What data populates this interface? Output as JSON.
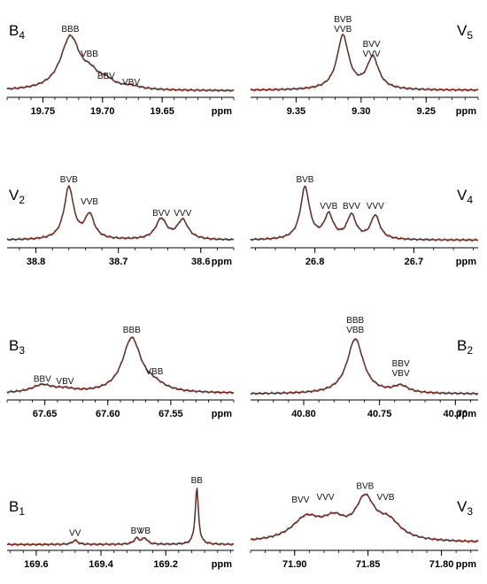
{
  "chart_data": [
    {
      "type": "line",
      "panel_label": {
        "main": "B",
        "sub": "4"
      },
      "xlabel": "ppm",
      "xlim": [
        19.78,
        19.59
      ],
      "ticks": [
        19.75,
        19.7,
        19.65
      ],
      "tick_labels": [
        "19.75",
        "19.70",
        "19.65"
      ],
      "peak_labels": [
        {
          "lines": [
            "BBB"
          ],
          "x": 19.727,
          "y": 1.0
        },
        {
          "lines": [
            "VBB"
          ],
          "x": 19.711,
          "y": 0.56
        },
        {
          "lines": [
            "BBV"
          ],
          "x": 19.697,
          "y": 0.17
        },
        {
          "lines": [
            "VBV"
          ],
          "x": 19.676,
          "y": 0.06
        }
      ],
      "series": [
        {
          "color": "#c0392b",
          "baseline": 0.02,
          "peaks": [
            {
              "center": 19.727,
              "height": 0.93,
              "width": 0.01
            },
            {
              "center": 19.71,
              "height": 0.2,
              "width": 0.008
            },
            {
              "center": 19.697,
              "height": 0.12,
              "width": 0.008
            },
            {
              "center": 19.676,
              "height": 0.05,
              "width": 0.01
            }
          ]
        },
        {
          "color": "#3c3c3c",
          "baseline": 0.02,
          "peaks": [
            {
              "center": 19.727,
              "height": 0.93,
              "width": 0.01
            },
            {
              "center": 19.71,
              "height": 0.2,
              "width": 0.008
            },
            {
              "center": 19.697,
              "height": 0.12,
              "width": 0.008
            },
            {
              "center": 19.676,
              "height": 0.05,
              "width": 0.01
            }
          ]
        }
      ]
    },
    {
      "type": "line",
      "panel_label": {
        "main": "V",
        "sub": "5"
      },
      "xlabel": "ppm",
      "xlim": [
        9.385,
        9.21
      ],
      "ticks": [
        9.35,
        9.3,
        9.25
      ],
      "tick_labels": [
        "9.35",
        "9.30",
        "9.25"
      ],
      "peak_labels": [
        {
          "lines": [
            "BVB",
            "VVB"
          ],
          "x": 9.314,
          "y": 1.0
        },
        {
          "lines": [
            "BVV",
            "VVV"
          ],
          "x": 9.292,
          "y": 0.56
        }
      ],
      "series": [
        {
          "color": "#c0392b",
          "baseline": 0.03,
          "peaks": [
            {
              "center": 9.314,
              "height": 0.95,
              "width": 0.0055
            },
            {
              "center": 9.291,
              "height": 0.56,
              "width": 0.0055
            }
          ]
        },
        {
          "color": "#3c3c3c",
          "baseline": 0.03,
          "peaks": [
            {
              "center": 9.314,
              "height": 0.95,
              "width": 0.0055
            },
            {
              "center": 9.291,
              "height": 0.56,
              "width": 0.0055
            }
          ]
        }
      ]
    },
    {
      "type": "line",
      "panel_label": {
        "main": "V",
        "sub": "2"
      },
      "xlabel": "ppm",
      "xlim": [
        38.835,
        38.56
      ],
      "ticks": [
        38.8,
        38.7,
        38.6
      ],
      "tick_labels": [
        "38.8",
        "38.7",
        "38.6"
      ],
      "peak_labels": [
        {
          "lines": [
            "BVB"
          ],
          "x": 38.76,
          "y": 1.0
        },
        {
          "lines": [
            "VVB"
          ],
          "x": 38.735,
          "y": 0.61
        },
        {
          "lines": [
            "BVV"
          ],
          "x": 38.648,
          "y": 0.41
        },
        {
          "lines": [
            "VVV"
          ],
          "x": 38.622,
          "y": 0.41
        }
      ],
      "series": [
        {
          "color": "#c0392b",
          "baseline": 0.04,
          "peaks": [
            {
              "center": 38.76,
              "height": 0.92,
              "width": 0.007
            },
            {
              "center": 38.735,
              "height": 0.42,
              "width": 0.007
            },
            {
              "center": 38.648,
              "height": 0.36,
              "width": 0.008
            },
            {
              "center": 38.622,
              "height": 0.34,
              "width": 0.008
            }
          ]
        },
        {
          "color": "#3c3c3c",
          "baseline": 0.04,
          "peaks": [
            {
              "center": 38.76,
              "height": 0.92,
              "width": 0.007
            },
            {
              "center": 38.735,
              "height": 0.42,
              "width": 0.007
            },
            {
              "center": 38.648,
              "height": 0.36,
              "width": 0.008
            },
            {
              "center": 38.622,
              "height": 0.34,
              "width": 0.008
            }
          ]
        }
      ]
    },
    {
      "type": "line",
      "panel_label": {
        "main": "V",
        "sub": "4"
      },
      "xlabel": "ppm",
      "xlim": [
        26.865,
        26.635
      ],
      "ticks": [
        26.8,
        26.7
      ],
      "tick_labels": [
        "26.8",
        "26.7"
      ],
      "peak_labels": [
        {
          "lines": [
            "BVB"
          ],
          "x": 26.81,
          "y": 1.0
        },
        {
          "lines": [
            "VVB"
          ],
          "x": 26.786,
          "y": 0.53
        },
        {
          "lines": [
            "BVV"
          ],
          "x": 26.763,
          "y": 0.53
        },
        {
          "lines": [
            "VVV"
          ],
          "x": 26.739,
          "y": 0.53
        }
      ],
      "series": [
        {
          "color": "#c0392b",
          "baseline": 0.04,
          "peaks": [
            {
              "center": 26.81,
              "height": 0.92,
              "width": 0.0055
            },
            {
              "center": 26.786,
              "height": 0.42,
              "width": 0.0055
            },
            {
              "center": 26.763,
              "height": 0.42,
              "width": 0.0055
            },
            {
              "center": 26.739,
              "height": 0.42,
              "width": 0.0055
            }
          ]
        },
        {
          "color": "#3c3c3c",
          "baseline": 0.04,
          "peaks": [
            {
              "center": 26.81,
              "height": 0.92,
              "width": 0.0055
            },
            {
              "center": 26.786,
              "height": 0.42,
              "width": 0.0055
            },
            {
              "center": 26.763,
              "height": 0.42,
              "width": 0.0055
            },
            {
              "center": 26.739,
              "height": 0.42,
              "width": 0.0055
            }
          ]
        }
      ]
    },
    {
      "type": "line",
      "panel_label": {
        "main": "B",
        "sub": "3"
      },
      "xlabel": "ppm",
      "xlim": [
        67.68,
        67.5
      ],
      "ticks": [
        67.65,
        67.6,
        67.55
      ],
      "tick_labels": [
        "67.65",
        "67.60",
        "67.55"
      ],
      "peak_labels": [
        {
          "lines": [
            "BBB"
          ],
          "x": 67.581,
          "y": 1.0
        },
        {
          "lines": [
            "VBB"
          ],
          "x": 67.563,
          "y": 0.29
        },
        {
          "lines": [
            "BBV"
          ],
          "x": 67.652,
          "y": 0.16
        },
        {
          "lines": [
            "VBV"
          ],
          "x": 67.634,
          "y": 0.12
        }
      ],
      "series": [
        {
          "color": "#c0392b",
          "baseline": 0.02,
          "peaks": [
            {
              "center": 67.581,
              "height": 0.93,
              "width": 0.009
            },
            {
              "center": 67.563,
              "height": 0.1,
              "width": 0.01
            },
            {
              "center": 67.652,
              "height": 0.13,
              "width": 0.01
            },
            {
              "center": 67.634,
              "height": 0.05,
              "width": 0.01
            }
          ]
        },
        {
          "color": "#3c3c3c",
          "baseline": 0.02,
          "peaks": [
            {
              "center": 67.581,
              "height": 0.93,
              "width": 0.009
            },
            {
              "center": 67.563,
              "height": 0.1,
              "width": 0.01
            },
            {
              "center": 67.652,
              "height": 0.13,
              "width": 0.01
            },
            {
              "center": 67.634,
              "height": 0.05,
              "width": 0.01
            }
          ]
        }
      ]
    },
    {
      "type": "line",
      "panel_label": {
        "main": "B",
        "sub": "2"
      },
      "xlabel": "ppm",
      "xlim": [
        40.835,
        40.685
      ],
      "ticks": [
        40.8,
        40.75,
        40.7
      ],
      "tick_labels": [
        "40.80",
        "40.75",
        "40.70"
      ],
      "peak_labels": [
        {
          "lines": [
            "BBB",
            "VBB"
          ],
          "x": 40.766,
          "y": 1.0
        },
        {
          "lines": [
            "BBV",
            "VBV"
          ],
          "x": 40.736,
          "y": 0.26
        }
      ],
      "series": [
        {
          "color": "#c0392b",
          "baseline": 0.01,
          "peaks": [
            {
              "center": 40.766,
              "height": 0.94,
              "width": 0.0065
            },
            {
              "center": 40.736,
              "height": 0.12,
              "width": 0.006
            }
          ]
        },
        {
          "color": "#3c3c3c",
          "baseline": 0.01,
          "peaks": [
            {
              "center": 40.766,
              "height": 0.94,
              "width": 0.0065
            },
            {
              "center": 40.736,
              "height": 0.12,
              "width": 0.006
            }
          ]
        }
      ]
    },
    {
      "type": "line",
      "panel_label": {
        "main": "B",
        "sub": "1"
      },
      "xlabel": "ppm",
      "xlim": [
        169.69,
        168.99
      ],
      "ticks": [
        169.6,
        169.4,
        169.2
      ],
      "tick_labels": [
        "169.6",
        "169.4",
        "169.2"
      ],
      "peak_labels": [
        {
          "lines": [
            "BB"
          ],
          "x": 169.104,
          "y": 1.0
        },
        {
          "lines": [
            "VV"
          ],
          "x": 169.48,
          "y": 0.1
        },
        {
          "lines": [
            "BV"
          ],
          "x": 169.29,
          "y": 0.14
        },
        {
          "lines": [
            "VB"
          ],
          "x": 169.265,
          "y": 0.14
        }
      ],
      "series": [
        {
          "color": "#c0392b",
          "baseline": 0.01,
          "peaks": [
            {
              "center": 169.104,
              "height": 0.97,
              "width": 0.006
            },
            {
              "center": 169.48,
              "height": 0.07,
              "width": 0.01
            },
            {
              "center": 169.29,
              "height": 0.1,
              "width": 0.01
            },
            {
              "center": 169.265,
              "height": 0.1,
              "width": 0.01
            }
          ]
        },
        {
          "color": "#3c3c3c",
          "baseline": 0.01,
          "peaks": [
            {
              "center": 169.104,
              "height": 0.97,
              "width": 0.006
            },
            {
              "center": 169.48,
              "height": 0.07,
              "width": 0.01
            },
            {
              "center": 169.29,
              "height": 0.1,
              "width": 0.01
            },
            {
              "center": 169.265,
              "height": 0.1,
              "width": 0.01
            }
          ]
        }
      ]
    },
    {
      "type": "line",
      "panel_label": {
        "main": "V",
        "sub": "3"
      },
      "xlabel": "ppm",
      "xlim": [
        71.93,
        71.775
      ],
      "ticks": [
        71.9,
        71.85,
        71.8
      ],
      "tick_labels": [
        "71.90",
        "71.85",
        "71.80"
      ],
      "peak_labels": [
        {
          "lines": [
            "BVB"
          ],
          "x": 71.852,
          "y": 0.9
        },
        {
          "lines": [
            "BVV"
          ],
          "x": 71.896,
          "y": 0.67
        },
        {
          "lines": [
            "VVV"
          ],
          "x": 71.879,
          "y": 0.71
        },
        {
          "lines": [
            "VVB"
          ],
          "x": 71.838,
          "y": 0.71
        }
      ],
      "series": [
        {
          "color": "#c0392b",
          "baseline": 0.04,
          "peaks": [
            {
              "center": 71.852,
              "height": 0.66,
              "width": 0.008
            },
            {
              "center": 71.892,
              "height": 0.38,
              "width": 0.012
            },
            {
              "center": 71.873,
              "height": 0.3,
              "width": 0.01
            },
            {
              "center": 71.836,
              "height": 0.3,
              "width": 0.01
            }
          ]
        },
        {
          "color": "#3c3c3c",
          "baseline": 0.04,
          "peaks": [
            {
              "center": 71.852,
              "height": 0.66,
              "width": 0.008
            },
            {
              "center": 71.892,
              "height": 0.38,
              "width": 0.012
            },
            {
              "center": 71.873,
              "height": 0.3,
              "width": 0.01
            },
            {
              "center": 71.836,
              "height": 0.3,
              "width": 0.01
            }
          ]
        }
      ]
    }
  ]
}
